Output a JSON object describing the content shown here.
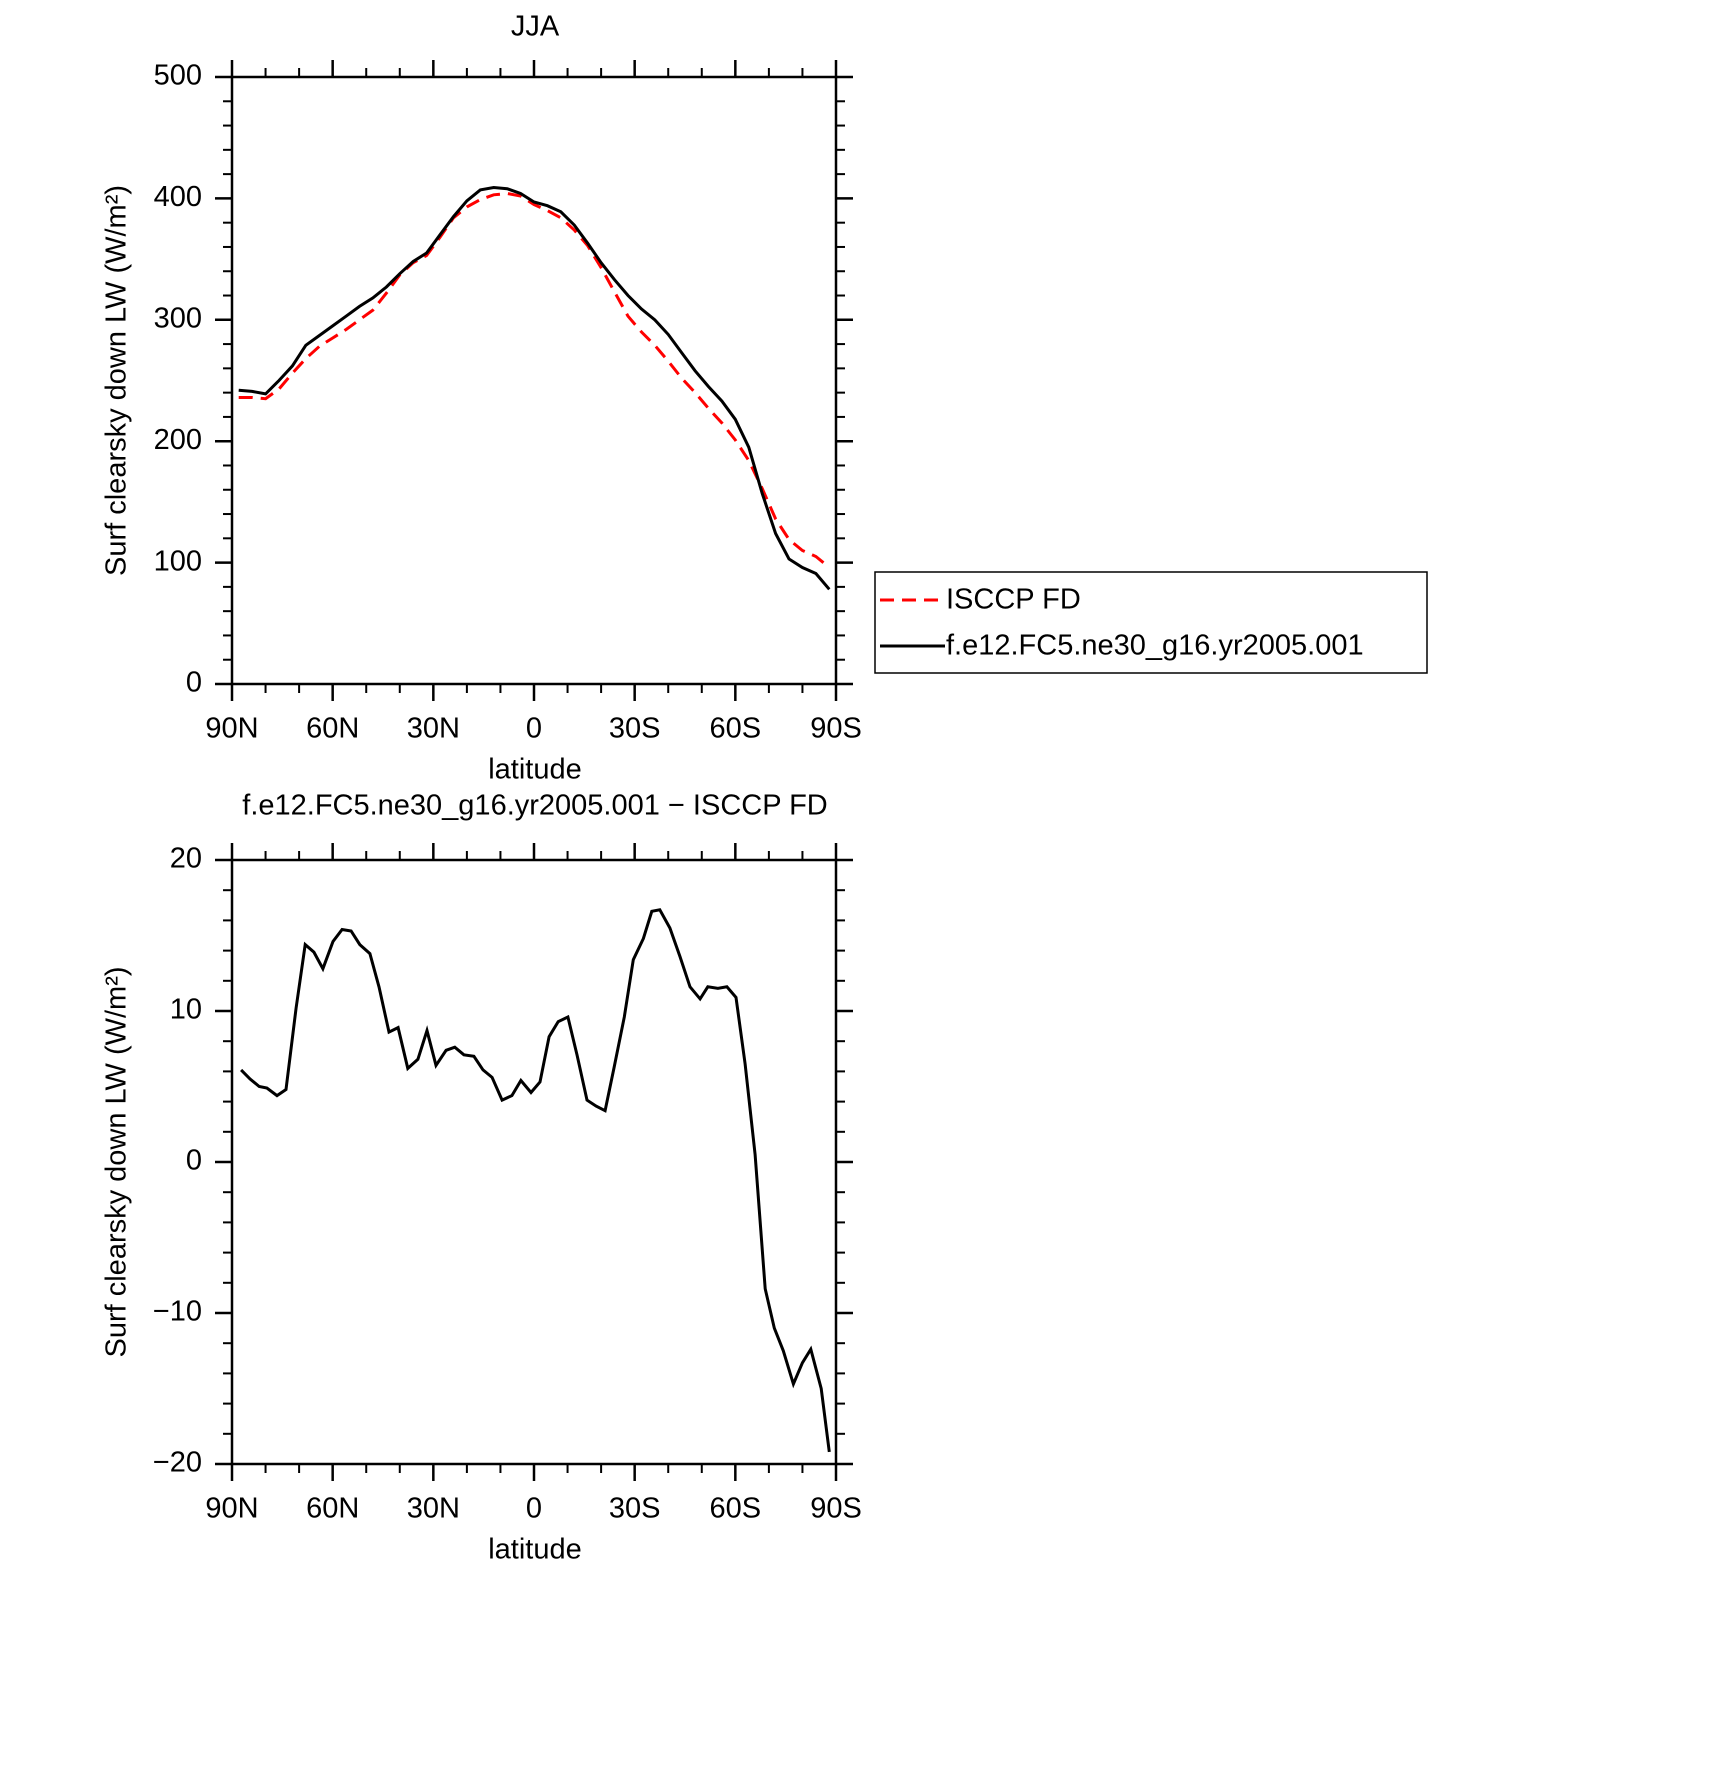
{
  "chart_data": [
    {
      "type": "line",
      "title": "JJA",
      "xlabel": "latitude",
      "ylabel": "Surf clearsky down LW (W/m²)",
      "xlim": [
        90,
        -90
      ],
      "xticks": [
        {
          "value": 90,
          "label": "90N"
        },
        {
          "value": 60,
          "label": "60N"
        },
        {
          "value": 30,
          "label": "30N"
        },
        0,
        {
          "value": -30,
          "label": "30S"
        },
        {
          "value": -60,
          "label": "60S"
        },
        {
          "value": -90,
          "label": "90S"
        }
      ],
      "ylim": [
        0,
        500
      ],
      "yticks": [
        0,
        100,
        200,
        300,
        400,
        500
      ],
      "legend": "right",
      "x": [
        88,
        84,
        80,
        76,
        72,
        68,
        64,
        60,
        56,
        52,
        48,
        44,
        40,
        36,
        32,
        28,
        24,
        20,
        16,
        12,
        8,
        4,
        0,
        -4,
        -8,
        -12,
        -16,
        -20,
        -24,
        -28,
        -32,
        -36,
        -40,
        -44,
        -48,
        -52,
        -56,
        -60,
        -64,
        -68,
        -72,
        -76,
        -80,
        -84,
        -88
      ],
      "series": [
        {
          "name": "ISCCP FD",
          "color": "#ff0000",
          "line_style": "dashed",
          "values": [
            236,
            236,
            235,
            243,
            256,
            268,
            278,
            285,
            292,
            300,
            308,
            322,
            337,
            347,
            353,
            368,
            384,
            393,
            399,
            403,
            404,
            402,
            395,
            390,
            384,
            374,
            361,
            343,
            323,
            303,
            290,
            279,
            266,
            252,
            240,
            227,
            215,
            201,
            184,
            161,
            136,
            119,
            110,
            105,
            96
          ]
        },
        {
          "name": "f.e12.FC5.ne30_g16.yr2005.001",
          "color": "#000000",
          "line_style": "solid",
          "values": [
            242,
            241,
            239,
            250,
            262,
            279,
            287,
            295,
            303,
            311,
            318,
            327,
            338,
            348,
            355,
            370,
            385,
            398,
            407,
            409,
            408,
            404,
            397,
            394,
            389,
            378,
            363,
            347,
            333,
            320,
            309,
            300,
            288,
            273,
            258,
            245,
            233,
            218,
            195,
            157,
            124,
            103,
            96,
            91,
            78
          ]
        }
      ]
    },
    {
      "type": "line",
      "title": "f.e12.FC5.ne30_g16.yr2005.001 − ISCCP FD",
      "xlabel": "latitude",
      "ylabel": "Surf clearsky down LW (W/m²)",
      "xlim": [
        90,
        -90
      ],
      "xticks": [
        {
          "value": 90,
          "label": "90N"
        },
        {
          "value": 60,
          "label": "60N"
        },
        {
          "value": 30,
          "label": "30N"
        },
        0,
        {
          "value": -30,
          "label": "30S"
        },
        {
          "value": -60,
          "label": "60S"
        },
        {
          "value": -90,
          "label": "90S"
        }
      ],
      "ylim": [
        -20,
        20
      ],
      "yticks": [
        {
          "value": -20,
          "label": "−20"
        },
        {
          "value": -10,
          "label": "−10"
        },
        0,
        10,
        20
      ],
      "color": "#000000",
      "x": [
        87.3,
        84.6,
        81.9,
        79.6,
        76.6,
        73.9,
        70.9,
        68.2,
        65.6,
        62.9,
        59.9,
        57.2,
        54.5,
        51.9,
        48.9,
        46.2,
        43.2,
        40.5,
        37.6,
        34.6,
        31.9,
        29.2,
        26.2,
        23.6,
        20.9,
        17.9,
        15.2,
        12.5,
        9.5,
        6.6,
        3.9,
        0.9,
        -1.8,
        -4.5,
        -7.2,
        -10.1,
        -12.8,
        -15.8,
        -18.5,
        -21.2,
        -23.9,
        -26.9,
        -29.6,
        -32.6,
        -35.1,
        -37.5,
        -40.5,
        -43.5,
        -46.5,
        -49.5,
        -51.8,
        -54.8,
        -57.5,
        -60.2,
        -62.9,
        -65.9,
        -68.9,
        -71.6,
        -74.3,
        -77.3,
        -80,
        -82.5,
        -85.6,
        -88
      ],
      "values": [
        6.1,
        5.5,
        5.0,
        4.9,
        4.4,
        4.8,
        10.2,
        14.4,
        13.9,
        12.8,
        14.6,
        15.4,
        15.3,
        14.4,
        13.8,
        11.6,
        8.6,
        8.9,
        6.2,
        6.8,
        8.7,
        6.4,
        7.4,
        7.6,
        7.1,
        7.0,
        6.1,
        5.6,
        4.1,
        4.4,
        5.4,
        4.6,
        5.3,
        8.3,
        9.3,
        9.6,
        7.1,
        4.1,
        3.7,
        3.4,
        6.3,
        9.6,
        13.4,
        14.8,
        16.6,
        16.7,
        15.5,
        13.6,
        11.6,
        10.8,
        11.6,
        11.5,
        11.6,
        10.9,
        6.5,
        0.5,
        -8.4,
        -11,
        -12.5,
        -14.7,
        -13.3,
        -12.4,
        -15,
        -19.2
      ]
    }
  ]
}
